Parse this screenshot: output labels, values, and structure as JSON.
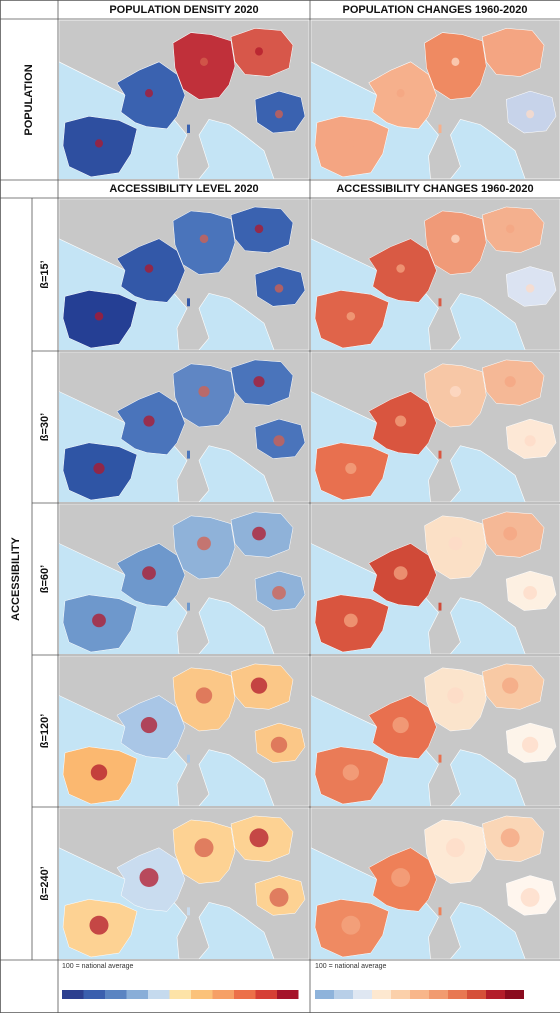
{
  "population_section": {
    "columns": [
      "POPULATION DENSITY 2020",
      "POPULATION CHANGES 1960-2020"
    ],
    "row_label": "POPULATION"
  },
  "accessibility_section": {
    "columns": [
      "ACCESSIBILITY LEVEL 2020",
      "ACCESSIBILITY CHANGES 1960-2020"
    ],
    "group_label": "ACCESSIBILITY",
    "rows": [
      "ß=15’",
      "ß=30’",
      "ß=60’",
      "ß=120’",
      "ß=240’"
    ]
  },
  "legend": {
    "notes": [
      "100 = national average",
      "100 = national average"
    ]
  }
}
